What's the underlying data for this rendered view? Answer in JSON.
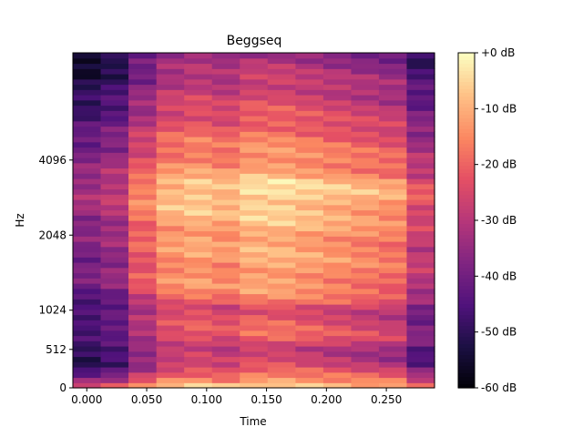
{
  "chart_data": {
    "type": "heatmap",
    "title": "Beggseq",
    "xlabel": "Time",
    "ylabel": "Hz",
    "x_ticks": [
      {
        "value": 0.0,
        "label": "0.000"
      },
      {
        "value": 0.05,
        "label": "0.050"
      },
      {
        "value": 0.1,
        "label": "0.100"
      },
      {
        "value": 0.15,
        "label": "0.150"
      },
      {
        "value": 0.2,
        "label": "0.200"
      },
      {
        "value": 0.25,
        "label": "0.250"
      }
    ],
    "xlim": [
      -0.0116,
      0.2902
    ],
    "y_scale": "symlog-mel",
    "y_ticks": [
      {
        "value": 0,
        "label": "0"
      },
      {
        "value": 512,
        "label": "512"
      },
      {
        "value": 1024,
        "label": "1024"
      },
      {
        "value": 2048,
        "label": "2048"
      },
      {
        "value": 4096,
        "label": "4096"
      }
    ],
    "colorbar": {
      "cmap": "magma",
      "range": [
        -60,
        0
      ],
      "ticks": [
        {
          "value": 0,
          "label": "+0 dB"
        },
        {
          "value": -10,
          "label": "-10 dB"
        },
        {
          "value": -20,
          "label": "-20 dB"
        },
        {
          "value": -30,
          "label": "-30 dB"
        },
        {
          "value": -40,
          "label": "-40 dB"
        },
        {
          "value": -50,
          "label": "-50 dB"
        },
        {
          "value": -60,
          "label": "-60 dB"
        }
      ]
    },
    "time_frames": [
      0.0,
      0.0232,
      0.0464,
      0.0697,
      0.0929,
      0.1161,
      0.1393,
      0.1625,
      0.1858,
      0.209,
      0.2322,
      0.2554,
      0.2786
    ],
    "frame_profile_db": [
      -50,
      -46,
      -34,
      -26,
      -24,
      -26,
      -22,
      -22,
      -24,
      -26,
      -28,
      -30,
      -42
    ],
    "band_profile_db": [
      {
        "hz": 0,
        "db": -2
      },
      {
        "hz": 100,
        "db": -12
      },
      {
        "hz": 300,
        "db": -26
      },
      {
        "hz": 512,
        "db": -28
      },
      {
        "hz": 700,
        "db": -20
      },
      {
        "hz": 1024,
        "db": -24
      },
      {
        "hz": 1300,
        "db": -16
      },
      {
        "hz": 2048,
        "db": -14
      },
      {
        "hz": 3000,
        "db": -8
      },
      {
        "hz": 4096,
        "db": -14
      },
      {
        "hz": 6500,
        "db": -24
      },
      {
        "hz": 11025,
        "db": -34
      }
    ]
  }
}
